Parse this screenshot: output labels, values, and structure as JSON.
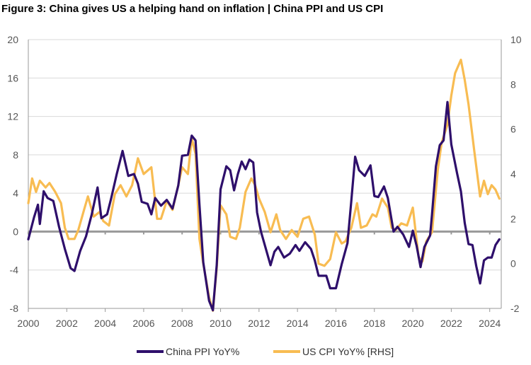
{
  "chart_data": {
    "type": "line",
    "title": "Figure 3: China gives US a helping hand on inflation | China PPI and US CPI",
    "xlabel": "",
    "ylabel_left": "",
    "ylabel_right": "",
    "xlim": [
      2000,
      2024.6
    ],
    "ylim_left": [
      -8,
      20
    ],
    "ylim_right": [
      -2,
      10
    ],
    "x_ticks": [
      2000,
      2002,
      2004,
      2006,
      2008,
      2010,
      2012,
      2014,
      2016,
      2018,
      2020,
      2022,
      2024
    ],
    "y_ticks_left": [
      20,
      16,
      12,
      8,
      4,
      0,
      -4,
      -8
    ],
    "y_ticks_right": [
      10,
      8,
      6,
      4,
      2,
      0,
      -2
    ],
    "grid": true,
    "legend_position": "bottom",
    "colors": {
      "china_ppi": "#2E0F6B",
      "us_cpi": "#F8BC52",
      "zero_line": "#999999",
      "grid": "#d9d9d9"
    },
    "series": [
      {
        "name": "China PPI YoY%",
        "axis": "left",
        "points": [
          [
            2000.0,
            -0.8
          ],
          [
            2000.3,
            1.5
          ],
          [
            2000.5,
            2.8
          ],
          [
            2000.6,
            0.8
          ],
          [
            2000.8,
            4.2
          ],
          [
            2001.0,
            3.5
          ],
          [
            2001.3,
            3.2
          ],
          [
            2001.6,
            0.5
          ],
          [
            2001.9,
            -1.8
          ],
          [
            2002.2,
            -3.8
          ],
          [
            2002.4,
            -4.1
          ],
          [
            2002.7,
            -2.0
          ],
          [
            2003.0,
            -0.5
          ],
          [
            2003.3,
            1.8
          ],
          [
            2003.6,
            4.6
          ],
          [
            2003.8,
            1.4
          ],
          [
            2004.1,
            1.8
          ],
          [
            2004.3,
            3.4
          ],
          [
            2004.6,
            6.0
          ],
          [
            2004.9,
            8.4
          ],
          [
            2005.2,
            5.8
          ],
          [
            2005.5,
            6.0
          ],
          [
            2005.7,
            5.0
          ],
          [
            2005.9,
            3.1
          ],
          [
            2006.2,
            2.9
          ],
          [
            2006.4,
            1.8
          ],
          [
            2006.6,
            3.5
          ],
          [
            2006.9,
            2.7
          ],
          [
            2007.2,
            3.3
          ],
          [
            2007.5,
            2.4
          ],
          [
            2007.8,
            4.8
          ],
          [
            2008.0,
            7.9
          ],
          [
            2008.3,
            8.0
          ],
          [
            2008.5,
            10.0
          ],
          [
            2008.7,
            9.5
          ],
          [
            2008.9,
            2.8
          ],
          [
            2009.1,
            -3.2
          ],
          [
            2009.4,
            -7.2
          ],
          [
            2009.6,
            -8.2
          ],
          [
            2009.8,
            -3.5
          ],
          [
            2010.0,
            4.4
          ],
          [
            2010.3,
            6.8
          ],
          [
            2010.5,
            6.4
          ],
          [
            2010.7,
            4.3
          ],
          [
            2010.9,
            6.0
          ],
          [
            2011.1,
            7.3
          ],
          [
            2011.3,
            6.5
          ],
          [
            2011.5,
            7.5
          ],
          [
            2011.7,
            7.2
          ],
          [
            2011.9,
            2.0
          ],
          [
            2012.1,
            0.0
          ],
          [
            2012.3,
            -1.4
          ],
          [
            2012.6,
            -3.5
          ],
          [
            2012.8,
            -2.1
          ],
          [
            2013.0,
            -1.6
          ],
          [
            2013.3,
            -2.7
          ],
          [
            2013.6,
            -2.3
          ],
          [
            2013.9,
            -1.4
          ],
          [
            2014.1,
            -2.0
          ],
          [
            2014.4,
            -1.1
          ],
          [
            2014.7,
            -1.8
          ],
          [
            2014.9,
            -3.0
          ],
          [
            2015.1,
            -4.6
          ],
          [
            2015.5,
            -4.6
          ],
          [
            2015.7,
            -5.9
          ],
          [
            2016.0,
            -5.9
          ],
          [
            2016.3,
            -3.4
          ],
          [
            2016.6,
            -1.2
          ],
          [
            2016.8,
            3.2
          ],
          [
            2017.0,
            7.8
          ],
          [
            2017.2,
            6.4
          ],
          [
            2017.5,
            5.8
          ],
          [
            2017.8,
            6.9
          ],
          [
            2018.0,
            3.7
          ],
          [
            2018.2,
            3.6
          ],
          [
            2018.5,
            4.7
          ],
          [
            2018.7,
            3.5
          ],
          [
            2019.0,
            0.0
          ],
          [
            2019.2,
            0.5
          ],
          [
            2019.5,
            -0.3
          ],
          [
            2019.8,
            -1.6
          ],
          [
            2020.0,
            0.1
          ],
          [
            2020.2,
            -1.5
          ],
          [
            2020.4,
            -3.7
          ],
          [
            2020.6,
            -1.6
          ],
          [
            2020.9,
            -0.4
          ],
          [
            2021.0,
            1.8
          ],
          [
            2021.2,
            6.8
          ],
          [
            2021.4,
            9.0
          ],
          [
            2021.6,
            9.5
          ],
          [
            2021.8,
            13.5
          ],
          [
            2022.0,
            9.1
          ],
          [
            2022.3,
            6.1
          ],
          [
            2022.5,
            4.2
          ],
          [
            2022.7,
            0.9
          ],
          [
            2022.9,
            -1.3
          ],
          [
            2023.1,
            -1.4
          ],
          [
            2023.3,
            -3.6
          ],
          [
            2023.5,
            -5.4
          ],
          [
            2023.7,
            -3.0
          ],
          [
            2023.9,
            -2.7
          ],
          [
            2024.1,
            -2.7
          ],
          [
            2024.3,
            -1.4
          ],
          [
            2024.5,
            -0.8
          ]
        ]
      },
      {
        "name": "US CPI YoY% [RHS]",
        "axis": "right",
        "points": [
          [
            2000.0,
            2.7
          ],
          [
            2000.2,
            3.8
          ],
          [
            2000.4,
            3.2
          ],
          [
            2000.6,
            3.7
          ],
          [
            2000.9,
            3.4
          ],
          [
            2001.1,
            3.6
          ],
          [
            2001.4,
            3.2
          ],
          [
            2001.7,
            2.7
          ],
          [
            2001.9,
            1.6
          ],
          [
            2002.1,
            1.1
          ],
          [
            2002.4,
            1.1
          ],
          [
            2002.6,
            1.5
          ],
          [
            2002.9,
            2.4
          ],
          [
            2003.1,
            3.0
          ],
          [
            2003.4,
            2.1
          ],
          [
            2003.7,
            2.3
          ],
          [
            2003.9,
            1.9
          ],
          [
            2004.2,
            1.7
          ],
          [
            2004.5,
            3.1
          ],
          [
            2004.8,
            3.5
          ],
          [
            2005.1,
            3.0
          ],
          [
            2005.4,
            3.5
          ],
          [
            2005.7,
            4.7
          ],
          [
            2006.0,
            4.0
          ],
          [
            2006.4,
            4.3
          ],
          [
            2006.7,
            2.0
          ],
          [
            2006.9,
            2.0
          ],
          [
            2007.2,
            2.8
          ],
          [
            2007.5,
            2.4
          ],
          [
            2007.8,
            3.5
          ],
          [
            2008.0,
            4.3
          ],
          [
            2008.3,
            4.0
          ],
          [
            2008.5,
            5.6
          ],
          [
            2008.7,
            4.9
          ],
          [
            2008.9,
            1.1
          ],
          [
            2009.1,
            0.0
          ],
          [
            2009.4,
            -1.5
          ],
          [
            2009.6,
            -2.1
          ],
          [
            2009.8,
            -0.2
          ],
          [
            2010.0,
            2.6
          ],
          [
            2010.3,
            2.2
          ],
          [
            2010.5,
            1.2
          ],
          [
            2010.8,
            1.1
          ],
          [
            2011.0,
            1.6
          ],
          [
            2011.3,
            3.2
          ],
          [
            2011.6,
            3.8
          ],
          [
            2011.8,
            3.5
          ],
          [
            2012.0,
            2.9
          ],
          [
            2012.3,
            2.3
          ],
          [
            2012.6,
            1.4
          ],
          [
            2012.9,
            2.2
          ],
          [
            2013.1,
            1.5
          ],
          [
            2013.4,
            1.1
          ],
          [
            2013.7,
            1.5
          ],
          [
            2014.0,
            1.2
          ],
          [
            2014.3,
            2.0
          ],
          [
            2014.6,
            2.1
          ],
          [
            2014.9,
            1.3
          ],
          [
            2015.1,
            0.0
          ],
          [
            2015.4,
            -0.1
          ],
          [
            2015.7,
            0.2
          ],
          [
            2016.0,
            1.4
          ],
          [
            2016.3,
            0.9
          ],
          [
            2016.5,
            1.0
          ],
          [
            2016.8,
            1.6
          ],
          [
            2017.1,
            2.7
          ],
          [
            2017.3,
            1.6
          ],
          [
            2017.6,
            1.7
          ],
          [
            2017.9,
            2.2
          ],
          [
            2018.1,
            2.1
          ],
          [
            2018.4,
            2.9
          ],
          [
            2018.7,
            2.5
          ],
          [
            2018.9,
            1.6
          ],
          [
            2019.1,
            1.5
          ],
          [
            2019.4,
            1.8
          ],
          [
            2019.7,
            1.7
          ],
          [
            2020.0,
            2.5
          ],
          [
            2020.3,
            0.3
          ],
          [
            2020.5,
            0.1
          ],
          [
            2020.7,
            1.0
          ],
          [
            2021.0,
            1.4
          ],
          [
            2021.3,
            4.2
          ],
          [
            2021.5,
            5.4
          ],
          [
            2021.8,
            6.2
          ],
          [
            2022.0,
            7.5
          ],
          [
            2022.2,
            8.5
          ],
          [
            2022.5,
            9.1
          ],
          [
            2022.7,
            8.2
          ],
          [
            2022.9,
            7.1
          ],
          [
            2023.2,
            5.0
          ],
          [
            2023.5,
            3.0
          ],
          [
            2023.7,
            3.7
          ],
          [
            2023.9,
            3.1
          ],
          [
            2024.1,
            3.5
          ],
          [
            2024.3,
            3.3
          ],
          [
            2024.5,
            2.9
          ]
        ]
      }
    ]
  }
}
